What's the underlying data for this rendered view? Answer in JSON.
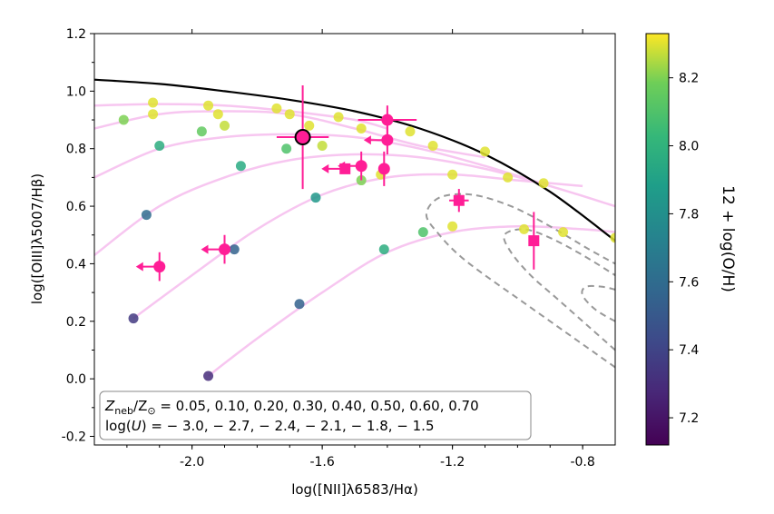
{
  "chart_data": {
    "type": "scatter",
    "xlabel": "log([NII]λ6583/Hα)",
    "ylabel": "log([OIII]λ5007/Hβ)",
    "xlim": [
      -2.3,
      -0.7
    ],
    "ylim": [
      -0.23,
      1.2
    ],
    "x_ticks": [
      -2.0,
      -1.6,
      -1.2,
      -0.8
    ],
    "x_tick_labels": [
      "-2.0",
      "-1.6",
      "-1.2",
      "-0.8"
    ],
    "y_ticks": [
      -0.2,
      0.0,
      0.2,
      0.4,
      0.6,
      0.8,
      1.0,
      1.2
    ],
    "y_tick_labels": [
      "-0.2",
      "0.0",
      "0.2",
      "0.4",
      "0.6",
      "0.8",
      "1.0",
      "1.2"
    ],
    "grid": false,
    "colorbar": {
      "label": "12 + log(O/H)",
      "range": [
        7.12,
        8.33
      ],
      "ticks": [
        7.2,
        7.4,
        7.6,
        7.8,
        8.0,
        8.2
      ],
      "tick_labels": [
        "7.2",
        "7.4",
        "7.6",
        "7.8",
        "8.0",
        "8.2"
      ],
      "colormap": "viridis"
    },
    "annotation": {
      "line1_prefix": "Z",
      "line1_sub1": "neb",
      "line1_mid": "/Z",
      "line1_sub2": "⊙",
      "line1_rest": " = 0.05, 0.10, 0.20, 0.30, 0.40, 0.50, 0.60, 0.70",
      "line2_prefix": "log(",
      "line2_italic": "U",
      "line2_rest": ") = − 3.0, − 2.7, − 2.4, − 2.1, − 1.8, − 1.5"
    },
    "demarcation_curve": {
      "color": "#000000",
      "points": [
        [
          -2.3,
          1.04
        ],
        [
          -2.1,
          1.025
        ],
        [
          -1.9,
          1.0
        ],
        [
          -1.7,
          0.97
        ],
        [
          -1.5,
          0.93
        ],
        [
          -1.3,
          0.87
        ],
        [
          -1.1,
          0.78
        ],
        [
          -0.9,
          0.65
        ],
        [
          -0.7,
          0.48
        ]
      ]
    },
    "model_tracks": {
      "color": "#f7c6f0",
      "tracks": [
        [
          [
            -2.3,
            0.95
          ],
          [
            -2.1,
            0.955
          ],
          [
            -1.9,
            0.95
          ],
          [
            -1.7,
            0.93
          ],
          [
            -1.5,
            0.9
          ],
          [
            -1.4,
            0.87
          ]
        ],
        [
          [
            -2.3,
            0.87
          ],
          [
            -2.1,
            0.92
          ],
          [
            -1.9,
            0.93
          ],
          [
            -1.7,
            0.92
          ],
          [
            -1.5,
            0.87
          ],
          [
            -1.3,
            0.81
          ],
          [
            -1.1,
            0.77
          ]
        ],
        [
          [
            -2.3,
            0.7
          ],
          [
            -2.1,
            0.8
          ],
          [
            -1.9,
            0.84
          ],
          [
            -1.7,
            0.85
          ],
          [
            -1.5,
            0.84
          ],
          [
            -1.3,
            0.8
          ],
          [
            -1.1,
            0.74
          ],
          [
            -0.9,
            0.67
          ]
        ],
        [
          [
            -2.3,
            0.43
          ],
          [
            -2.1,
            0.6
          ],
          [
            -1.9,
            0.7
          ],
          [
            -1.7,
            0.76
          ],
          [
            -1.5,
            0.78
          ],
          [
            -1.3,
            0.77
          ],
          [
            -1.1,
            0.73
          ],
          [
            -0.9,
            0.67
          ],
          [
            -0.7,
            0.6
          ]
        ],
        [
          [
            -2.18,
            0.21
          ],
          [
            -2.0,
            0.36
          ],
          [
            -1.8,
            0.52
          ],
          [
            -1.6,
            0.64
          ],
          [
            -1.4,
            0.7
          ],
          [
            -1.2,
            0.71
          ],
          [
            -1.0,
            0.69
          ],
          [
            -0.8,
            0.67
          ]
        ],
        [
          [
            -1.95,
            0.01
          ],
          [
            -1.8,
            0.14
          ],
          [
            -1.6,
            0.3
          ],
          [
            -1.4,
            0.44
          ],
          [
            -1.2,
            0.51
          ],
          [
            -1.0,
            0.53
          ],
          [
            -0.8,
            0.52
          ],
          [
            -0.7,
            0.51
          ]
        ]
      ]
    },
    "contours": {
      "color": "#999999",
      "curves": [
        [
          [
            -0.7,
            0.04
          ],
          [
            -0.8,
            0.12
          ],
          [
            -0.9,
            0.2
          ],
          [
            -1.0,
            0.28
          ],
          [
            -1.1,
            0.36
          ],
          [
            -1.18,
            0.43
          ],
          [
            -1.24,
            0.5
          ],
          [
            -1.28,
            0.57
          ],
          [
            -1.24,
            0.63
          ],
          [
            -1.14,
            0.64
          ],
          [
            -1.02,
            0.6
          ],
          [
            -0.9,
            0.53
          ],
          [
            -0.78,
            0.45
          ],
          [
            -0.7,
            0.4
          ]
        ],
        [
          [
            -0.7,
            0.1
          ],
          [
            -0.78,
            0.18
          ],
          [
            -0.88,
            0.28
          ],
          [
            -0.96,
            0.36
          ],
          [
            -1.02,
            0.44
          ],
          [
            -1.04,
            0.5
          ],
          [
            -0.98,
            0.52
          ],
          [
            -0.9,
            0.49
          ],
          [
            -0.8,
            0.43
          ],
          [
            -0.7,
            0.36
          ]
        ],
        [
          [
            -0.7,
            0.2
          ],
          [
            -0.76,
            0.24
          ],
          [
            -0.8,
            0.29
          ],
          [
            -0.79,
            0.32
          ],
          [
            -0.74,
            0.32
          ],
          [
            -0.7,
            0.31
          ]
        ]
      ]
    },
    "model_points": [
      {
        "x": -2.12,
        "y": 0.96,
        "z": 8.3
      },
      {
        "x": -2.12,
        "y": 0.92,
        "z": 8.3
      },
      {
        "x": -1.95,
        "y": 0.95,
        "z": 8.3
      },
      {
        "x": -1.92,
        "y": 0.92,
        "z": 8.3
      },
      {
        "x": -1.9,
        "y": 0.88,
        "z": 8.27
      },
      {
        "x": -1.74,
        "y": 0.94,
        "z": 8.3
      },
      {
        "x": -1.7,
        "y": 0.92,
        "z": 8.3
      },
      {
        "x": -1.64,
        "y": 0.88,
        "z": 8.3
      },
      {
        "x": -1.55,
        "y": 0.91,
        "z": 8.3
      },
      {
        "x": -1.48,
        "y": 0.87,
        "z": 8.3
      },
      {
        "x": -1.33,
        "y": 0.86,
        "z": 8.3
      },
      {
        "x": -1.26,
        "y": 0.81,
        "z": 8.3
      },
      {
        "x": -1.1,
        "y": 0.79,
        "z": 8.3
      },
      {
        "x": -1.2,
        "y": 0.71,
        "z": 8.3
      },
      {
        "x": -1.03,
        "y": 0.7,
        "z": 8.3
      },
      {
        "x": -0.92,
        "y": 0.68,
        "z": 8.3
      },
      {
        "x": -1.42,
        "y": 0.71,
        "z": 8.3
      },
      {
        "x": -1.2,
        "y": 0.53,
        "z": 8.3
      },
      {
        "x": -0.98,
        "y": 0.52,
        "z": 8.3
      },
      {
        "x": -0.86,
        "y": 0.51,
        "z": 8.3
      },
      {
        "x": -0.7,
        "y": 0.49,
        "z": 8.3
      },
      {
        "x": -1.6,
        "y": 0.81,
        "z": 8.27
      },
      {
        "x": -1.48,
        "y": 0.69,
        "z": 8.2
      },
      {
        "x": -2.21,
        "y": 0.9,
        "z": 8.2
      },
      {
        "x": -1.97,
        "y": 0.86,
        "z": 8.15
      },
      {
        "x": -1.71,
        "y": 0.8,
        "z": 8.1
      },
      {
        "x": -1.29,
        "y": 0.51,
        "z": 8.1
      },
      {
        "x": -2.1,
        "y": 0.81,
        "z": 7.97
      },
      {
        "x": -1.85,
        "y": 0.74,
        "z": 7.95
      },
      {
        "x": -1.41,
        "y": 0.45,
        "z": 7.97
      },
      {
        "x": -1.62,
        "y": 0.63,
        "z": 7.85
      },
      {
        "x": -2.14,
        "y": 0.57,
        "z": 7.6
      },
      {
        "x": -1.87,
        "y": 0.45,
        "z": 7.55
      },
      {
        "x": -1.67,
        "y": 0.26,
        "z": 7.55
      },
      {
        "x": -2.18,
        "y": 0.21,
        "z": 7.35
      },
      {
        "x": -1.95,
        "y": 0.01,
        "z": 7.3
      }
    ],
    "observations": {
      "color": "#ff1e96",
      "points": [
        {
          "marker": "circle",
          "x": -1.4,
          "y": 0.9,
          "xerr": 0.09,
          "yerr": 0.05,
          "upper_limit_x": false
        },
        {
          "marker": "circle",
          "x": -1.4,
          "y": 0.83,
          "xerr": 0,
          "yerr": 0.05,
          "upper_limit_x": true
        },
        {
          "marker": "circle",
          "x": -1.48,
          "y": 0.74,
          "xerr": 0,
          "yerr": 0.05,
          "upper_limit_x": true
        },
        {
          "marker": "circle",
          "x": -1.41,
          "y": 0.73,
          "xerr": 0,
          "yerr": 0.06,
          "upper_limit_x": false
        },
        {
          "marker": "square",
          "x": -1.53,
          "y": 0.73,
          "xerr": 0,
          "yerr": 0,
          "upper_limit_x": true
        },
        {
          "marker": "square",
          "x": -1.18,
          "y": 0.62,
          "xerr": 0.03,
          "yerr": 0.04,
          "upper_limit_x": false
        },
        {
          "marker": "square",
          "x": -0.95,
          "y": 0.48,
          "xerr": 0,
          "yerr": 0.1,
          "upper_limit_x": false
        },
        {
          "marker": "circle",
          "x": -1.9,
          "y": 0.45,
          "xerr": 0,
          "yerr": 0.05,
          "upper_limit_x": true
        },
        {
          "marker": "circle",
          "x": -2.1,
          "y": 0.39,
          "xerr": 0,
          "yerr": 0.05,
          "upper_limit_x": true
        }
      ],
      "highlighted": {
        "marker": "circle",
        "x": -1.66,
        "y": 0.84,
        "xerr": 0.08,
        "yerr": 0.18,
        "edge_color": "#000000"
      }
    }
  }
}
